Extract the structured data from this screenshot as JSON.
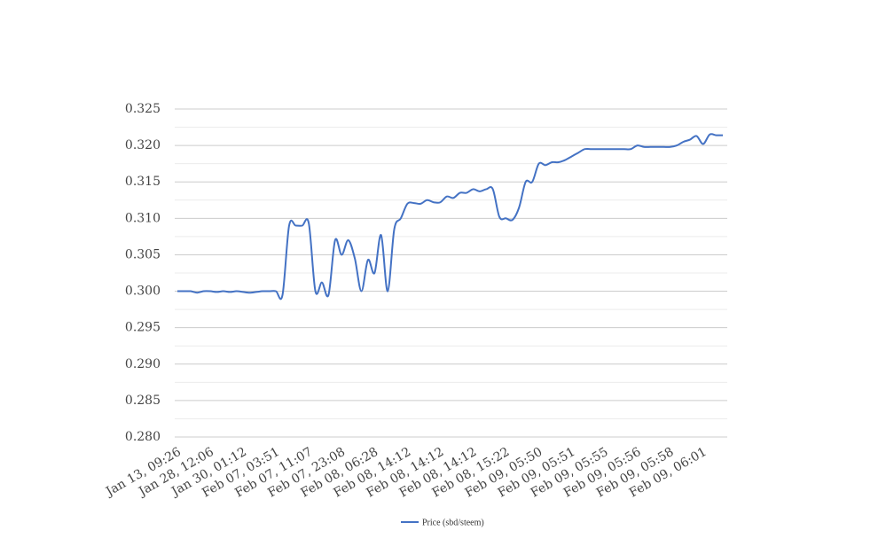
{
  "chart_data": {
    "type": "line",
    "categories": [
      "Jan 13, 09:26",
      null,
      null,
      null,
      null,
      "Jan 28, 12:06",
      null,
      null,
      null,
      null,
      "Jan 30, 01:12",
      null,
      null,
      null,
      null,
      "Feb 07, 03:51",
      null,
      null,
      null,
      null,
      "Feb 07, 11:07",
      null,
      null,
      null,
      null,
      "Feb 07, 23:08",
      null,
      null,
      null,
      null,
      "Feb 08, 06:28",
      null,
      null,
      null,
      null,
      "Feb 08, 14:12",
      null,
      null,
      null,
      null,
      "Feb 08, 14:12",
      null,
      null,
      null,
      null,
      "Feb 08, 14:12",
      null,
      null,
      null,
      null,
      "Feb 08, 15:22",
      null,
      null,
      null,
      null,
      "Feb 09, 05:50",
      null,
      null,
      null,
      null,
      "Feb 09, 05:51",
      null,
      null,
      null,
      null,
      "Feb 09, 05:55",
      null,
      null,
      null,
      null,
      "Feb 09, 05:56",
      null,
      null,
      null,
      null,
      "Feb 09, 05:58",
      null,
      null,
      null,
      null,
      "Feb 09, 06:01",
      null,
      null,
      null
    ],
    "series": [
      {
        "name": "Price (sbd/steem)",
        "color": "#4472c4",
        "values": [
          0.3,
          0.3,
          0.3,
          0.2998,
          0.3,
          0.3,
          0.2999,
          0.3,
          0.2999,
          0.3,
          0.2999,
          0.2998,
          0.2999,
          0.3,
          0.3,
          0.3,
          0.2995,
          0.309,
          0.309,
          0.309,
          0.3093,
          0.3,
          0.3012,
          0.2995,
          0.307,
          0.305,
          0.307,
          0.3045,
          0.3,
          0.3043,
          0.3025,
          0.3077,
          0.3,
          0.3085,
          0.31,
          0.312,
          0.3121,
          0.312,
          0.3125,
          0.3122,
          0.3122,
          0.313,
          0.3128,
          0.3135,
          0.3135,
          0.314,
          0.3137,
          0.314,
          0.314,
          0.3102,
          0.31,
          0.3098,
          0.3115,
          0.315,
          0.315,
          0.3175,
          0.3173,
          0.3177,
          0.3177,
          0.318,
          0.3185,
          0.319,
          0.3195,
          0.3195,
          0.3195,
          0.3195,
          0.3195,
          0.3195,
          0.3195,
          0.3195,
          0.32,
          0.3198,
          0.3198,
          0.3198,
          0.3198,
          0.3198,
          0.32,
          0.3205,
          0.3208,
          0.3213,
          0.3202,
          0.3215,
          0.3214,
          0.3214
        ]
      }
    ],
    "ylim": [
      0.28,
      0.325
    ],
    "yticks": [
      {
        "value": 0.28,
        "label": "0.280"
      },
      0.285,
      {
        "value": 0.29,
        "label": "0.290"
      },
      0.295,
      {
        "value": 0.3,
        "label": "0.300"
      },
      0.305,
      {
        "value": 0.31,
        "label": "0.310"
      },
      0.315,
      {
        "value": 0.32,
        "label": "0.320"
      },
      0.325
    ],
    "grid": true,
    "legend": "bottom"
  }
}
